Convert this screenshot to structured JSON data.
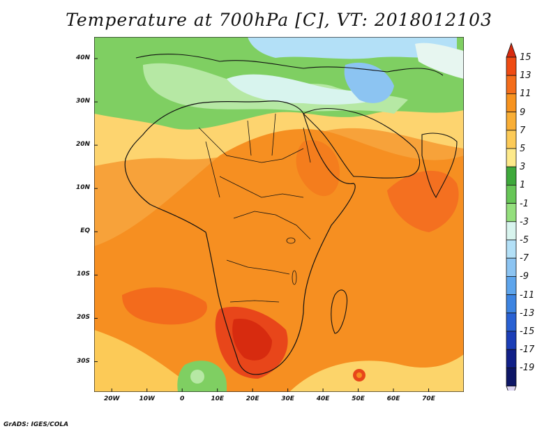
{
  "title": "Temperature at 700hPa [C], VT: 2018012103",
  "credit": "GrADS: IGES/COLA",
  "map": {
    "projection": "latlon",
    "lon_range": [
      -25,
      80
    ],
    "lat_range": [
      -37,
      45
    ],
    "y_ticks": [
      "40N",
      "30N",
      "20N",
      "10N",
      "EQ",
      "10S",
      "20S",
      "30S"
    ],
    "x_ticks": [
      "20W",
      "10W",
      "0",
      "10E",
      "20E",
      "30E",
      "40E",
      "50E",
      "60E",
      "70E"
    ]
  },
  "colorbar": {
    "levels": [
      "15",
      "13",
      "11",
      "9",
      "7",
      "5",
      "3",
      "1",
      "-1",
      "-3",
      "-5",
      "-7",
      "-9",
      "-11",
      "-13",
      "-15",
      "-17",
      "-19"
    ],
    "colors": [
      "#d72b0f",
      "#ef4b13",
      "#f46d1b",
      "#f7931f",
      "#f9ae35",
      "#fcca57",
      "#fde98a",
      "#3ea93b",
      "#67c657",
      "#94df7d",
      "#d8f4ee",
      "#b3e0f7",
      "#8cc4f2",
      "#5ea5ec",
      "#3d84e1",
      "#2961d3",
      "#1b3eb7",
      "#112088",
      "#0d1666",
      "#dcd4f2"
    ]
  }
}
